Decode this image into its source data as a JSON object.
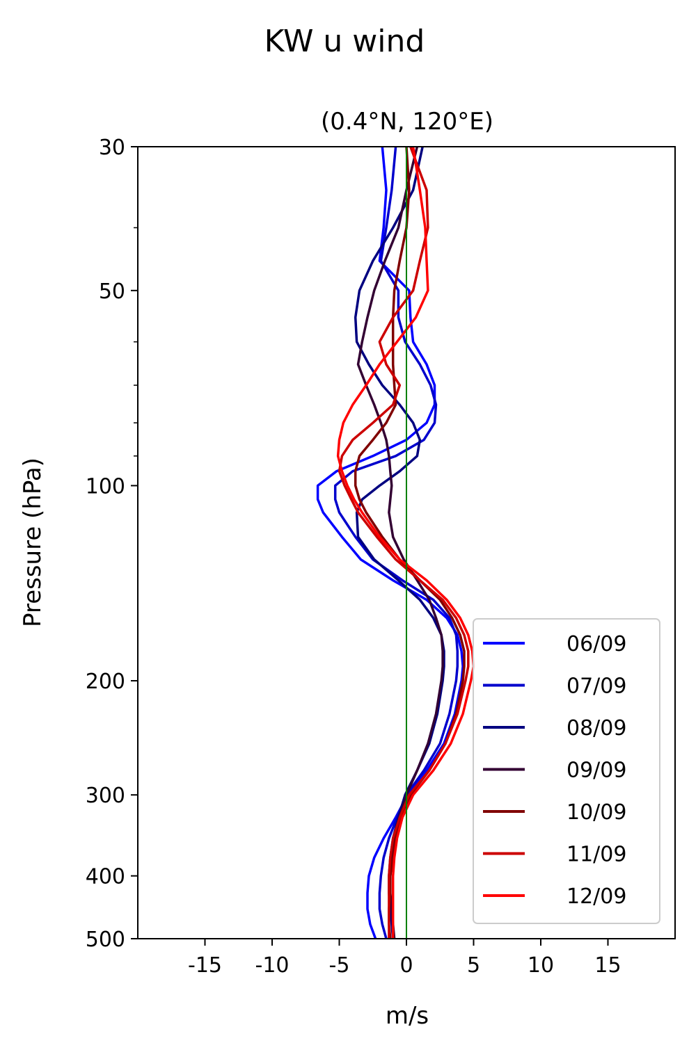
{
  "chart_data": {
    "type": "line",
    "title": "KW u wind",
    "subtitle": "(0.4°N, 120°E)",
    "xlabel": "m/s",
    "ylabel": "Pressure (hPa)",
    "xlim": [
      -20,
      20
    ],
    "ylim": [
      500,
      30
    ],
    "yscale": "log",
    "x_ticks": [
      -15,
      -10,
      -5,
      0,
      5,
      10,
      15
    ],
    "y_ticks": [
      30,
      50,
      100,
      200,
      300,
      400,
      500
    ],
    "y_minor_ticks": [
      40,
      60,
      70,
      80,
      90
    ],
    "reference_line": {
      "x": 0,
      "color": "#008000"
    },
    "legend_position": "lower-right",
    "pressure_levels": [
      30,
      35,
      40,
      45,
      50,
      55,
      60,
      65,
      70,
      75,
      80,
      85,
      90,
      95,
      100,
      105,
      110,
      120,
      130,
      140,
      150,
      160,
      170,
      180,
      190,
      200,
      225,
      250,
      275,
      300,
      325,
      350,
      375,
      400,
      425,
      450,
      475,
      500
    ],
    "series": [
      {
        "name": "06/09",
        "color": "#0000ff",
        "values": [
          -1.8,
          -1.5,
          -1.7,
          -2.0,
          0.2,
          0.3,
          0.5,
          1.5,
          2.1,
          2.1,
          1.5,
          0.0,
          -2.5,
          -5.2,
          -6.6,
          -6.6,
          -6.2,
          -4.8,
          -3.4,
          -1.0,
          1.5,
          3.0,
          3.8,
          4.1,
          4.2,
          4.1,
          3.6,
          2.8,
          1.5,
          0.1,
          -0.8,
          -1.7,
          -2.4,
          -2.8,
          -2.9,
          -2.9,
          -2.7,
          -2.3
        ]
      },
      {
        "name": "07/09",
        "color": "#0000cc",
        "values": [
          -0.8,
          -1.1,
          -1.5,
          -1.9,
          -0.6,
          -0.6,
          -0.1,
          1.0,
          1.8,
          2.2,
          2.1,
          1.3,
          -0.8,
          -4.0,
          -5.3,
          -5.3,
          -5.0,
          -3.8,
          -2.5,
          -0.3,
          2.0,
          3.2,
          3.7,
          3.8,
          3.8,
          3.7,
          3.2,
          2.5,
          1.3,
          0.0,
          -0.7,
          -1.3,
          -1.7,
          -1.9,
          -2.0,
          -2.0,
          -1.8,
          -1.5
        ]
      },
      {
        "name": "08/09",
        "color": "#000080",
        "values": [
          1.2,
          0.5,
          -1.0,
          -2.5,
          -3.5,
          -3.8,
          -3.7,
          -2.8,
          -1.8,
          -0.5,
          0.5,
          1.0,
          0.8,
          -0.5,
          -2.0,
          -3.3,
          -3.7,
          -3.6,
          -2.4,
          -0.6,
          1.0,
          2.0,
          2.6,
          2.8,
          2.8,
          2.7,
          2.3,
          1.7,
          0.8,
          -0.1,
          -0.6,
          -1.0,
          -1.2,
          -1.3,
          -1.3,
          -1.2,
          -1.1,
          -1.0
        ]
      },
      {
        "name": "09/09",
        "color": "#330033",
        "values": [
          0.8,
          0.0,
          -0.6,
          -1.6,
          -2.4,
          -2.9,
          -3.3,
          -3.6,
          -3.0,
          -2.4,
          -1.9,
          -1.5,
          -1.3,
          -1.2,
          -1.1,
          -1.2,
          -1.3,
          -1.0,
          -0.2,
          0.8,
          1.7,
          2.2,
          2.6,
          2.7,
          2.7,
          2.6,
          2.2,
          1.6,
          0.8,
          0.0,
          -0.5,
          -0.9,
          -1.1,
          -1.2,
          -1.2,
          -1.1,
          -1.0,
          -0.9
        ]
      },
      {
        "name": "10/09",
        "color": "#800000",
        "values": [
          0.0,
          0.2,
          0.0,
          -0.5,
          -0.9,
          -1.0,
          -1.0,
          -1.0,
          -0.9,
          -0.8,
          -1.5,
          -2.5,
          -3.5,
          -3.8,
          -3.8,
          -3.5,
          -3.0,
          -1.8,
          -0.5,
          1.0,
          2.5,
          3.4,
          4.0,
          4.3,
          4.3,
          4.2,
          3.7,
          2.9,
          1.7,
          0.3,
          -0.4,
          -0.8,
          -1.0,
          -1.2,
          -1.2,
          -1.3,
          -1.3,
          -1.2
        ]
      },
      {
        "name": "11/09",
        "color": "#cc0000",
        "values": [
          0.3,
          1.5,
          1.6,
          1.0,
          0.5,
          -1.0,
          -2.0,
          -1.5,
          -0.5,
          -1.0,
          -2.5,
          -4.0,
          -4.8,
          -5.0,
          -4.6,
          -4.1,
          -3.6,
          -2.2,
          -0.8,
          1.0,
          2.7,
          3.7,
          4.3,
          4.6,
          4.6,
          4.4,
          3.8,
          2.9,
          1.7,
          0.2,
          -0.5,
          -1.0,
          -1.2,
          -1.3,
          -1.3,
          -1.3,
          -1.3,
          -1.3
        ]
      },
      {
        "name": "12/09",
        "color": "#ff0000",
        "values": [
          0.5,
          1.0,
          1.4,
          1.5,
          1.6,
          0.7,
          -0.7,
          -2.0,
          -3.0,
          -4.0,
          -4.7,
          -5.0,
          -5.1,
          -4.8,
          -4.4,
          -3.9,
          -3.3,
          -2.0,
          -0.5,
          1.5,
          3.0,
          4.0,
          4.6,
          4.9,
          5.0,
          4.8,
          4.2,
          3.3,
          2.0,
          0.5,
          -0.3,
          -0.7,
          -0.9,
          -1.0,
          -1.0,
          -1.0,
          -1.0,
          -1.0
        ]
      }
    ]
  }
}
